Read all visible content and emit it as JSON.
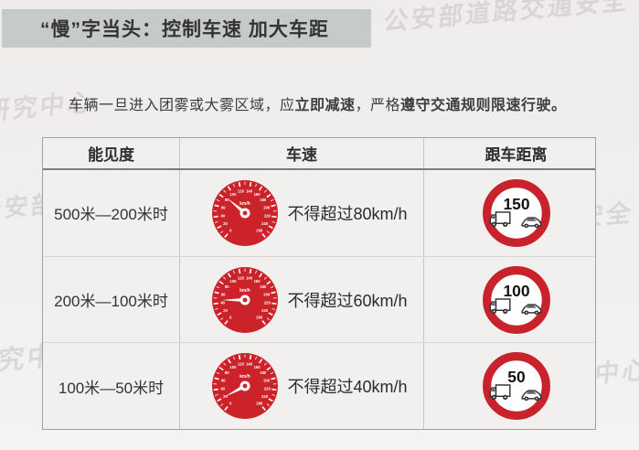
{
  "page": {
    "background": "#f0efed",
    "accent_red": "#c8232c",
    "title_bar_bg": "#c6cac8"
  },
  "title_bar": {
    "text": "“慢”字当头：控制车速 加大车距"
  },
  "intro": {
    "segments": [
      {
        "text": "车辆一旦进入团雾或大雾区域，应",
        "bold": false
      },
      {
        "text": "立即减速",
        "bold": true
      },
      {
        "text": "，严格",
        "bold": false
      },
      {
        "text": "遵守交通规则限速行驶。",
        "bold": true
      }
    ]
  },
  "watermark": {
    "instances": [
      "公安部道路交通安全",
      "研究中心",
      "公安部道路交通安全研究中心",
      "公安部道路交通安全",
      "研究中心",
      "公安部道路交通安全研究中心"
    ]
  },
  "table": {
    "headers": [
      "能见度",
      "车速",
      "跟车距离"
    ],
    "speedometer": {
      "unit": "km/h",
      "dial_min": 0,
      "dial_max": 260,
      "dial_step": 20,
      "face_color": "#cb2329"
    },
    "rows": [
      {
        "visibility": "500米—200米时",
        "speed_text": "不得超过80km/h",
        "needle_angle": -50,
        "distance": "150"
      },
      {
        "visibility": "200米—100米时",
        "speed_text": "不得超过60km/h",
        "needle_angle": -90,
        "distance": "100"
      },
      {
        "visibility": "100米—50米时",
        "speed_text": "不得超过40km/h",
        "needle_angle": -118,
        "distance": "50"
      }
    ]
  }
}
